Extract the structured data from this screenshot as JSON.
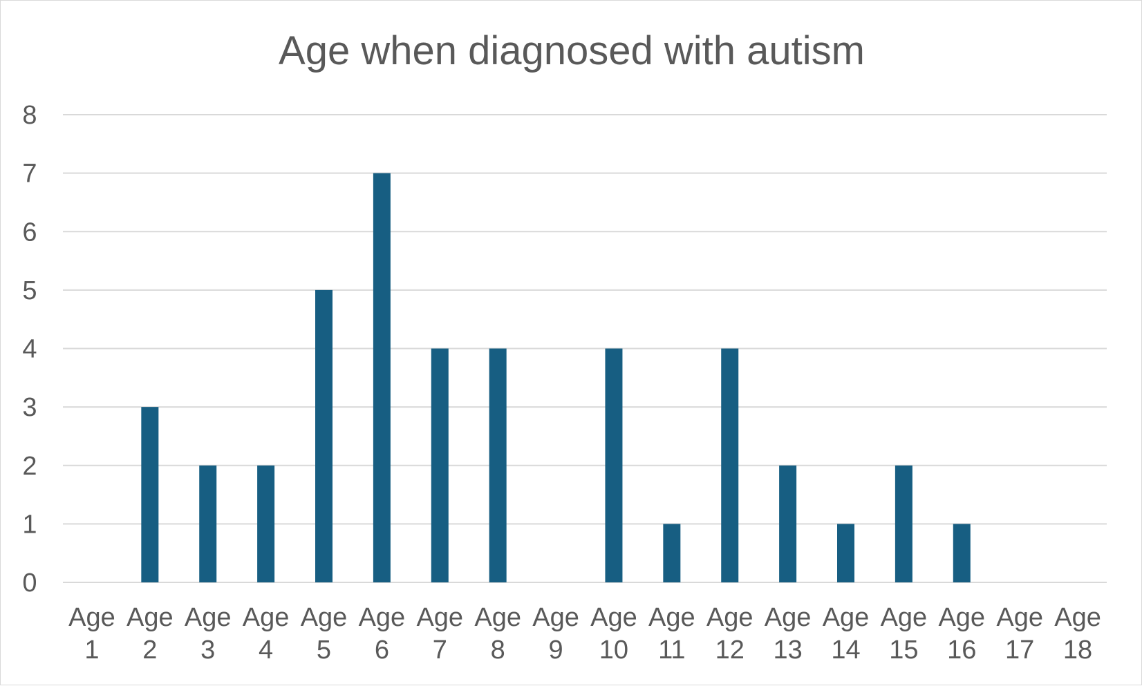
{
  "chart_data": {
    "type": "bar",
    "title": "Age when diagnosed with autism",
    "xlabel": "",
    "ylabel": "",
    "categories": [
      [
        "Age",
        "1"
      ],
      [
        "Age",
        "2"
      ],
      [
        "Age",
        "3"
      ],
      [
        "Age",
        "4"
      ],
      [
        "Age",
        "5"
      ],
      [
        "Age",
        "6"
      ],
      [
        "Age",
        "7"
      ],
      [
        "Age",
        "8"
      ],
      [
        "Age",
        "9"
      ],
      [
        "Age",
        "10"
      ],
      [
        "Age",
        "11"
      ],
      [
        "Age",
        "12"
      ],
      [
        "Age",
        "13"
      ],
      [
        "Age",
        "14"
      ],
      [
        "Age",
        "15"
      ],
      [
        "Age",
        "16"
      ],
      [
        "Age",
        "17"
      ],
      [
        "Age",
        "18"
      ]
    ],
    "values": [
      0,
      3,
      2,
      2,
      5,
      7,
      4,
      4,
      0,
      4,
      1,
      4,
      2,
      1,
      2,
      1,
      0,
      0
    ],
    "ylim": [
      0,
      8
    ],
    "yticks": [
      "0",
      "1",
      "2",
      "3",
      "4",
      "5",
      "6",
      "7",
      "8"
    ],
    "grid": true,
    "legend": "none",
    "colors": {
      "bar": "#175e82",
      "grid": "#d9d9d9",
      "text": "#595959"
    }
  }
}
